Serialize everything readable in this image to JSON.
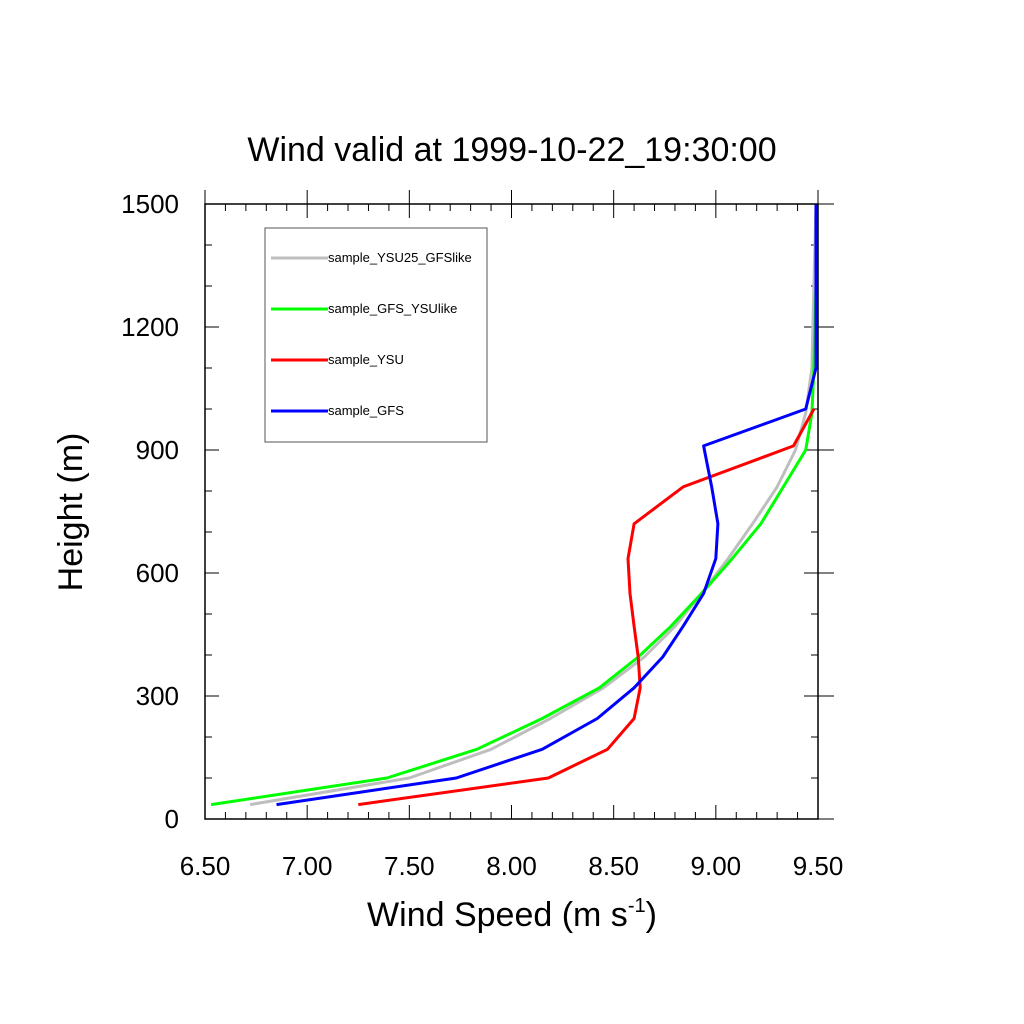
{
  "chart_data": {
    "type": "line",
    "title": "Wind valid at 1999-10-22_19:30:00",
    "xlabel": "Wind Speed (m s",
    "xlabel_sup": "-1",
    "xlabel_close": ")",
    "ylabel": "Height (m)",
    "xlim": [
      6.5,
      9.5
    ],
    "ylim": [
      0,
      1500
    ],
    "xticks": [
      "6.50",
      "7.00",
      "7.50",
      "8.00",
      "8.50",
      "9.00",
      "9.50"
    ],
    "yticks": [
      "0",
      "300",
      "600",
      "900",
      "1200",
      "1500"
    ],
    "legend_position": "top-left",
    "series": [
      {
        "name": "sample_YSU25_GFSlike",
        "color": "#bebebe",
        "points": [
          [
            6.72,
            35
          ],
          [
            7.5,
            100
          ],
          [
            7.9,
            170
          ],
          [
            8.19,
            245
          ],
          [
            8.45,
            320
          ],
          [
            8.65,
            395
          ],
          [
            8.8,
            470
          ],
          [
            8.93,
            550
          ],
          [
            9.06,
            635
          ],
          [
            9.18,
            720
          ],
          [
            9.3,
            810
          ],
          [
            9.39,
            900
          ],
          [
            9.44,
            990
          ],
          [
            9.47,
            1100
          ],
          [
            9.48,
            1300
          ],
          [
            9.49,
            1500
          ]
        ]
      },
      {
        "name": "sample_GFS_YSUlike",
        "color": "#00ff00",
        "points": [
          [
            6.53,
            35
          ],
          [
            7.39,
            100
          ],
          [
            7.83,
            170
          ],
          [
            8.15,
            245
          ],
          [
            8.43,
            320
          ],
          [
            8.62,
            395
          ],
          [
            8.78,
            470
          ],
          [
            8.93,
            550
          ],
          [
            9.08,
            635
          ],
          [
            9.22,
            720
          ],
          [
            9.33,
            810
          ],
          [
            9.44,
            900
          ],
          [
            9.47,
            990
          ],
          [
            9.48,
            1100
          ],
          [
            9.49,
            1300
          ],
          [
            9.49,
            1500
          ]
        ]
      },
      {
        "name": "sample_YSU",
        "color": "#ff0000",
        "points": [
          [
            7.25,
            35
          ],
          [
            8.18,
            100
          ],
          [
            8.47,
            170
          ],
          [
            8.6,
            245
          ],
          [
            8.63,
            320
          ],
          [
            8.62,
            395
          ],
          [
            8.6,
            470
          ],
          [
            8.58,
            550
          ],
          [
            8.57,
            635
          ],
          [
            8.6,
            720
          ],
          [
            8.84,
            810
          ],
          [
            9.38,
            910
          ],
          [
            9.48,
            1000
          ]
        ]
      },
      {
        "name": "sample_GFS",
        "color": "#0000ff",
        "points": [
          [
            6.85,
            35
          ],
          [
            7.73,
            100
          ],
          [
            8.15,
            170
          ],
          [
            8.42,
            245
          ],
          [
            8.6,
            320
          ],
          [
            8.74,
            395
          ],
          [
            8.84,
            470
          ],
          [
            8.94,
            550
          ],
          [
            9.0,
            635
          ],
          [
            9.01,
            720
          ],
          [
            8.98,
            810
          ],
          [
            8.94,
            910
          ],
          [
            9.44,
            1000
          ],
          [
            9.49,
            1100
          ],
          [
            9.49,
            1300
          ],
          [
            9.49,
            1500
          ]
        ]
      }
    ]
  }
}
